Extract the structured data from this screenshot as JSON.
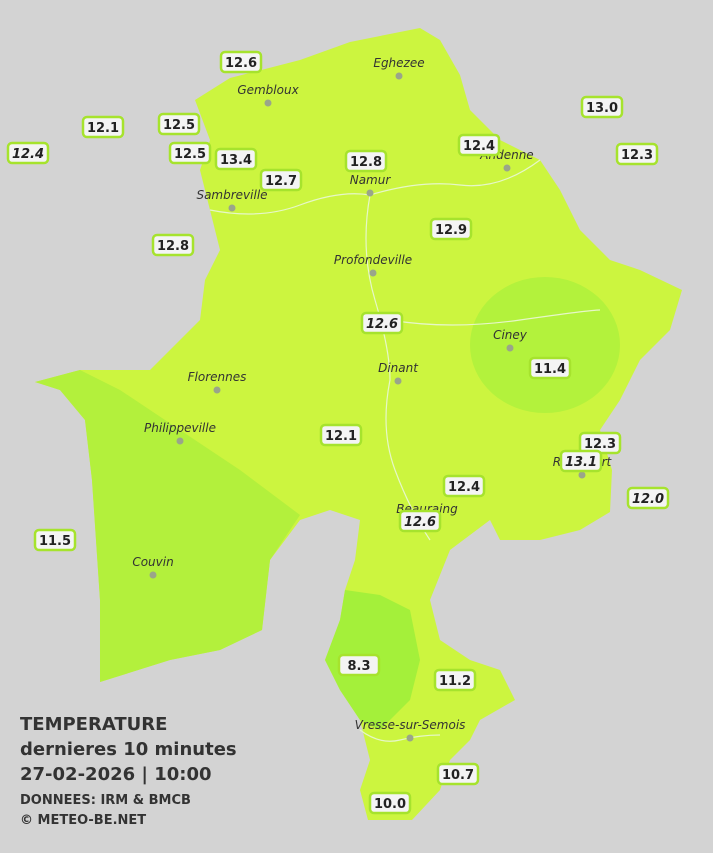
{
  "cities": [
    {
      "name": "Eghezee"
    },
    {
      "name": "Gembloux"
    },
    {
      "name": "Andenne"
    },
    {
      "name": "Namur"
    },
    {
      "name": "Sambreville"
    },
    {
      "name": "Profondeville"
    },
    {
      "name": "Ciney"
    },
    {
      "name": "Dinant"
    },
    {
      "name": "Florennes"
    },
    {
      "name": "Philippeville"
    },
    {
      "name": "Rochefort"
    },
    {
      "name": "Beauraing"
    },
    {
      "name": "Couvin"
    },
    {
      "name": "Vresse-sur-Semois"
    }
  ],
  "stations": [
    {
      "value": "12.6"
    },
    {
      "value": "12.1"
    },
    {
      "value": "12.4",
      "italic": true
    },
    {
      "value": "12.5"
    },
    {
      "value": "12.5"
    },
    {
      "value": "13.4"
    },
    {
      "value": "12.7"
    },
    {
      "value": "12.8"
    },
    {
      "value": "12.4"
    },
    {
      "value": "13.0"
    },
    {
      "value": "12.3"
    },
    {
      "value": "12.9"
    },
    {
      "value": "12.8"
    },
    {
      "value": "12.6",
      "italic": true
    },
    {
      "value": "11.4"
    },
    {
      "value": "12.1"
    },
    {
      "value": "12.3"
    },
    {
      "value": "13.1",
      "italic": true
    },
    {
      "value": "12.0",
      "italic": true
    },
    {
      "value": "12.4"
    },
    {
      "value": "12.6",
      "italic": true
    },
    {
      "value": "11.5"
    },
    {
      "value": "8.3"
    },
    {
      "value": "11.2"
    },
    {
      "value": "10.7"
    },
    {
      "value": "10.0"
    }
  ],
  "legend": {
    "lines": [
      "TEMPERATURE",
      "dernieres 10 minutes",
      "27-02-2026  |  10:00",
      "DONNEES: IRM & BMCB",
      "© METEO-BE.NET"
    ]
  }
}
